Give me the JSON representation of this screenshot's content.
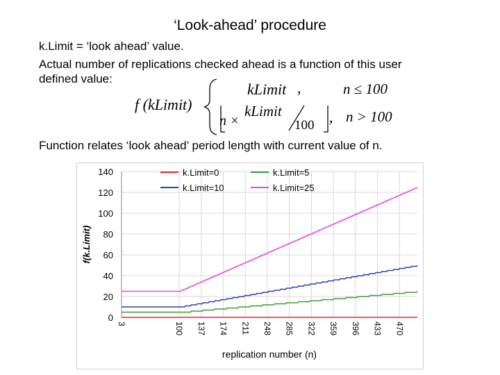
{
  "slide": {
    "title": "‘Look-ahead’ procedure",
    "line1": "k.Limit = ‘look ahead’ value.",
    "line2": "Actual number of replications checked ahead is a function of this user",
    "line3": "defined value:",
    "line4": "Function relates ‘look ahead’ period length with current value of n."
  },
  "formula": {
    "lhs": "f (kLimit)",
    "case1": "kLimit",
    "comma1": ",",
    "cond1": "n ≤ 100",
    "case2_n": "n ×",
    "case2_numer": "kLimit",
    "case2_denom": "100",
    "comma2": ",",
    "cond2": "n > 100"
  },
  "chart_data": {
    "type": "line",
    "xlabel": "replication number (n)",
    "ylabel": "f(k.Limit)",
    "xticks": [
      3,
      100,
      137,
      174,
      211,
      248,
      285,
      322,
      359,
      396,
      433,
      470
    ],
    "xlim": [
      3,
      500
    ],
    "ylim": [
      0,
      140
    ],
    "yticks": [
      0,
      20,
      40,
      60,
      80,
      100,
      120,
      140
    ],
    "grid": true,
    "legend_position": "top",
    "series": [
      {
        "name": "k.Limit=0",
        "k": 0,
        "color": "#e8232a",
        "points": [
          [
            3,
            0
          ],
          [
            100,
            0
          ],
          [
            500,
            0
          ]
        ]
      },
      {
        "name": "k.Limit=5",
        "k": 5,
        "color": "#3a9a3a",
        "points": [
          [
            3,
            5
          ],
          [
            100,
            5
          ],
          [
            500,
            25
          ]
        ]
      },
      {
        "name": "k.Limit=10",
        "k": 10,
        "color": "#2f3fb0",
        "points": [
          [
            3,
            10
          ],
          [
            100,
            10
          ],
          [
            500,
            50
          ]
        ]
      },
      {
        "name": "k.Limit=25",
        "k": 25,
        "color": "#e04ae0",
        "points": [
          [
            3,
            25
          ],
          [
            100,
            25
          ],
          [
            500,
            125
          ]
        ]
      }
    ]
  }
}
